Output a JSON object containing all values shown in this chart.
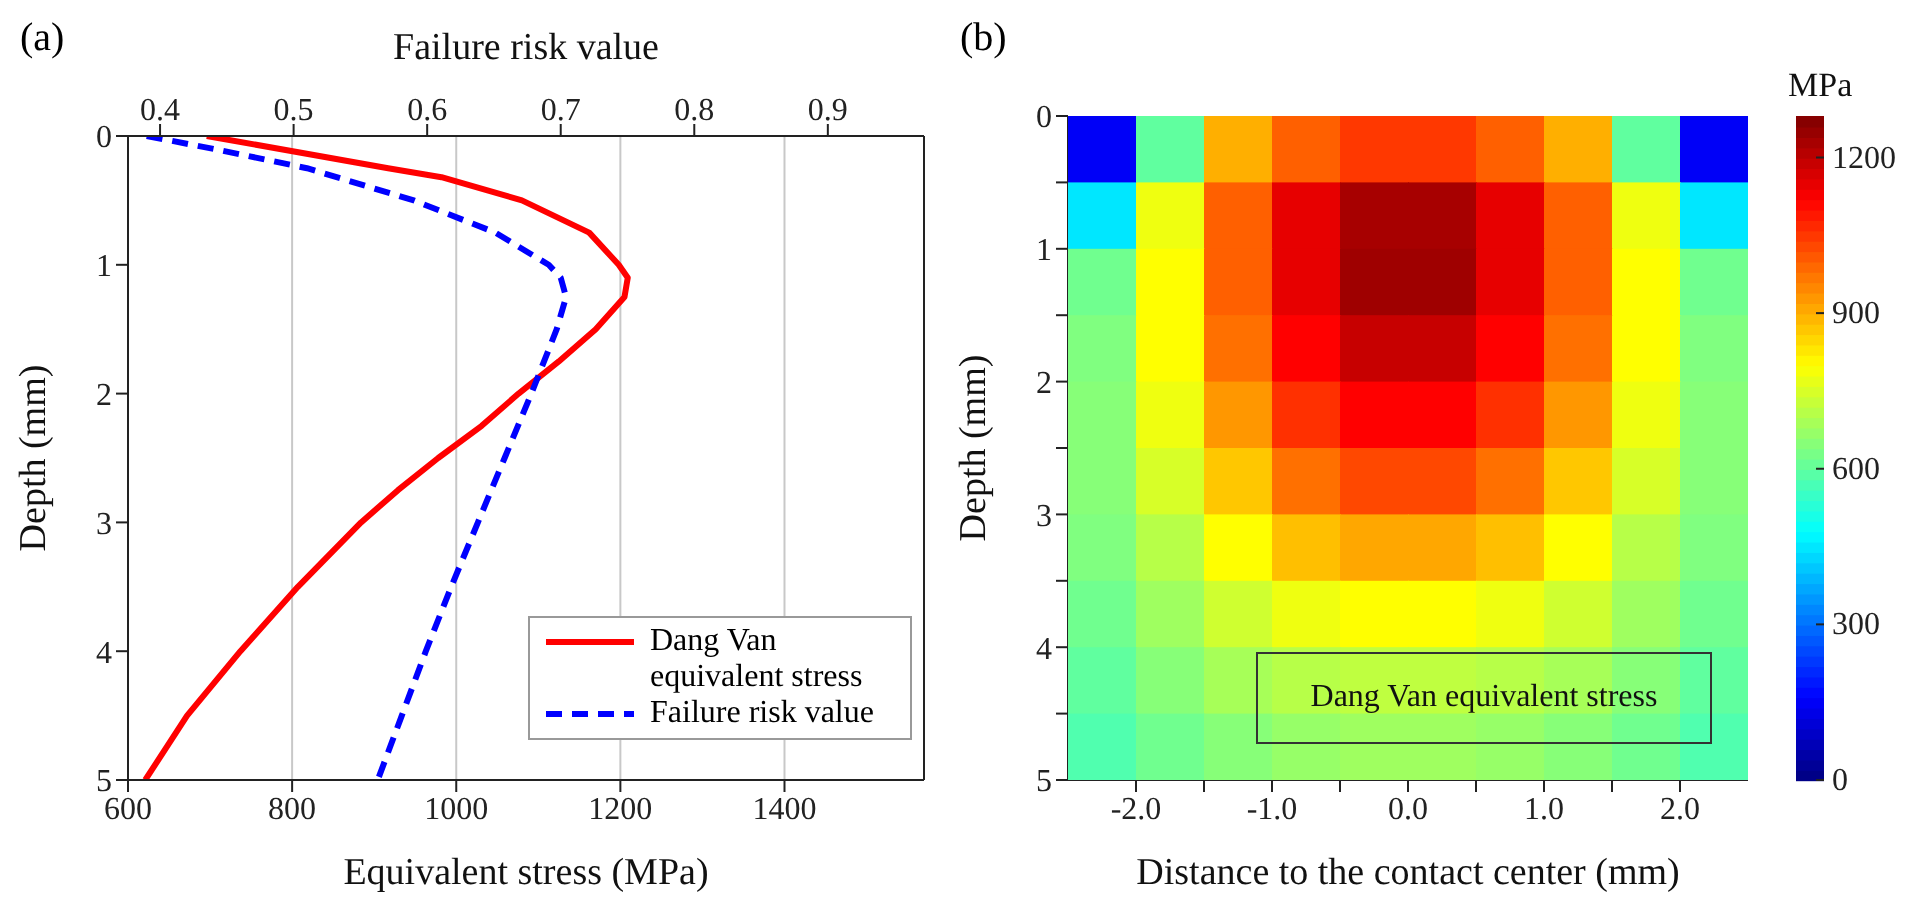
{
  "chart_data": [
    {
      "type": "line",
      "title": "(a)",
      "xlabel": "Equivalent stress (MPa)",
      "x2label": "Failure risk value",
      "ylabel": "Depth (mm)",
      "xlim": [
        600,
        1570
      ],
      "xticks": [
        600,
        800,
        1000,
        1200,
        1400
      ],
      "x2lim": [
        0.376,
        0.972
      ],
      "x2ticks": [
        0.4,
        0.5,
        0.6,
        0.7,
        0.8,
        0.9
      ],
      "ylim": [
        5,
        0
      ],
      "yticks": [
        0,
        1,
        2,
        3,
        4,
        5
      ],
      "grid": true,
      "legend": "bottom right",
      "series": [
        {
          "name": "Dang Van equivalent stress",
          "color": "#ff0000",
          "line_style": "solid",
          "x": [
            696,
            917,
            982,
            1080,
            1162,
            1198,
            1209,
            1205,
            1170,
            1125,
            1076,
            1031,
            978,
            929,
            884,
            807,
            737,
            672,
            621
          ],
          "values": [
            0,
            0.25,
            0.32,
            0.5,
            0.75,
            1.0,
            1.1,
            1.25,
            1.5,
            1.75,
            2.0,
            2.25,
            2.5,
            2.75,
            3.0,
            3.5,
            4.0,
            4.5,
            5.0
          ]
        },
        {
          "name": "Failure risk value",
          "color": "#0000ff",
          "line_style": "dashed",
          "axis": "x2",
          "x": [
            0.39,
            0.44,
            0.51,
            0.59,
            0.651,
            0.691,
            0.7,
            0.704,
            0.697,
            0.678,
            0.658,
            0.638,
            0.618,
            0.599,
            0.581,
            0.563
          ],
          "values": [
            0,
            0.1,
            0.25,
            0.5,
            0.75,
            1.0,
            1.1,
            1.25,
            1.5,
            2.0,
            2.5,
            3.0,
            3.5,
            4.0,
            4.5,
            5.0
          ]
        }
      ]
    },
    {
      "type": "heatmap",
      "title": "(b)",
      "xlabel": "Distance to the contact center (mm)",
      "ylabel": "Depth (mm)",
      "clabel": "MPa",
      "annotations": [
        "Dang Van equivalent stress"
      ],
      "xlim": [
        -2.5,
        2.5
      ],
      "xticks": [
        {
          "value": -2,
          "label": "-2.0"
        },
        {
          "value": -1.5,
          "label": null
        },
        {
          "value": -1,
          "label": "-1.0"
        },
        {
          "value": -0.5,
          "label": null
        },
        {
          "value": 0,
          "label": "0.0"
        },
        {
          "value": 0.5,
          "label": null
        },
        {
          "value": 1,
          "label": "1.0"
        },
        {
          "value": 1.5,
          "label": null
        },
        {
          "value": 2,
          "label": "2.0"
        }
      ],
      "ylim": [
        5,
        0
      ],
      "yticks": [
        0,
        {
          "value": 0.5,
          "label": null
        },
        1,
        {
          "value": 1.5,
          "label": null
        },
        2,
        {
          "value": 2.5,
          "label": null
        },
        3,
        {
          "value": 3.5,
          "label": null
        },
        4,
        {
          "value": 4.5,
          "label": null
        },
        5
      ],
      "clim": [
        0,
        1280
      ],
      "cticks": [
        0,
        300,
        600,
        900,
        1200
      ],
      "cells": [
        [
          150,
          600,
          900,
          1000,
          1050,
          1050,
          1000,
          900,
          600,
          150
        ],
        [
          450,
          780,
          1000,
          1150,
          1230,
          1230,
          1150,
          1000,
          780,
          450
        ],
        [
          620,
          800,
          1000,
          1150,
          1240,
          1240,
          1150,
          1000,
          800,
          620
        ],
        [
          640,
          800,
          980,
          1120,
          1190,
          1190,
          1120,
          980,
          800,
          640
        ],
        [
          650,
          780,
          930,
          1060,
          1120,
          1120,
          1060,
          930,
          780,
          650
        ],
        [
          650,
          750,
          870,
          980,
          1030,
          1030,
          980,
          870,
          750,
          650
        ],
        [
          640,
          710,
          800,
          880,
          910,
          910,
          880,
          800,
          710,
          640
        ],
        [
          620,
          680,
          740,
          780,
          800,
          800,
          780,
          740,
          680,
          620
        ],
        [
          600,
          650,
          690,
          710,
          720,
          720,
          710,
          690,
          650,
          600
        ],
        [
          580,
          620,
          650,
          670,
          680,
          680,
          670,
          650,
          620,
          580
        ]
      ]
    }
  ]
}
